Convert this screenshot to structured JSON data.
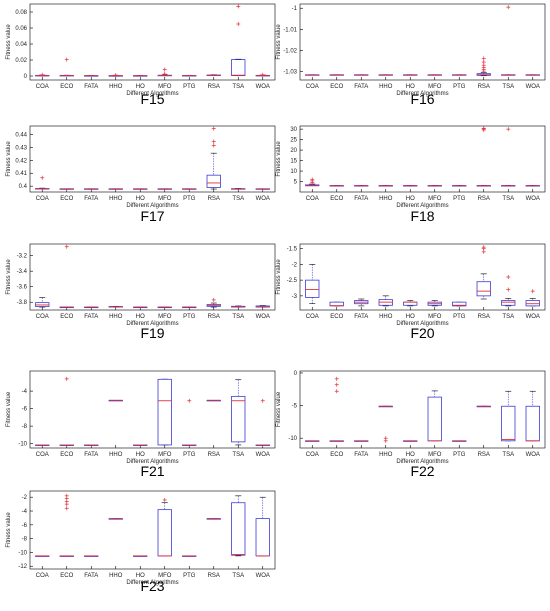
{
  "figure": {
    "xlabel": "Different Algorithms",
    "ylabel": "Fitness value",
    "box_color": "#3b3bd6",
    "median_color": "#e0303a",
    "outlier_color": "#e0303a",
    "whisker_color": "#3b3bd6"
  },
  "chart_data": [
    {
      "type": "box",
      "caption": "F15",
      "categories": [
        "COA",
        "ECO",
        "FATA",
        "HHO",
        "HO",
        "MFO",
        "PTG",
        "RSA",
        "TSA",
        "WOA"
      ],
      "ylim": [
        -0.005,
        0.09
      ],
      "yticks": [
        "0",
        "0.02",
        "0.04",
        "0.06",
        "0.08"
      ],
      "boxes": [
        {
          "q1": 0.0003,
          "med": 0.0005,
          "q3": 0.0008,
          "lo": 0.0003,
          "hi": 0.0012,
          "out": [
            0.0015
          ]
        },
        {
          "q1": 0.0003,
          "med": 0.0005,
          "q3": 0.0008,
          "lo": 0.0003,
          "hi": 0.001,
          "out": [
            0.0205
          ]
        },
        {
          "q1": 0.0003,
          "med": 0.0004,
          "q3": 0.0005,
          "lo": 0.0003,
          "hi": 0.0006,
          "out": []
        },
        {
          "q1": 0.0003,
          "med": 0.0004,
          "q3": 0.0005,
          "lo": 0.0003,
          "hi": 0.0006,
          "out": [
            0.0012
          ]
        },
        {
          "q1": 0.0003,
          "med": 0.0004,
          "q3": 0.0005,
          "lo": 0.0003,
          "hi": 0.0006,
          "out": []
        },
        {
          "q1": 0.0003,
          "med": 0.0006,
          "q3": 0.001,
          "lo": 0.0003,
          "hi": 0.0015,
          "out": [
            0.0025,
            0.008
          ]
        },
        {
          "q1": 0.0003,
          "med": 0.0005,
          "q3": 0.0007,
          "lo": 0.0003,
          "hi": 0.0009,
          "out": []
        },
        {
          "q1": 0.0005,
          "med": 0.0008,
          "q3": 0.0012,
          "lo": 0.0004,
          "hi": 0.0016,
          "out": []
        },
        {
          "q1": 0.0005,
          "med": 0.001,
          "q3": 0.0205,
          "lo": 0.0003,
          "hi": 0.021,
          "out": [
            0.065,
            0.087
          ]
        },
        {
          "q1": 0.0003,
          "med": 0.0005,
          "q3": 0.0008,
          "lo": 0.0003,
          "hi": 0.0012,
          "out": [
            0.0015
          ]
        }
      ]
    },
    {
      "type": "box",
      "caption": "F16",
      "categories": [
        "COA",
        "ECO",
        "FATA",
        "HHO",
        "HO",
        "MFO",
        "PTG",
        "RSA",
        "TSA",
        "WOA"
      ],
      "ylim": [
        -1.034,
        -0.998
      ],
      "yticks": [
        "-1",
        "-1.01",
        "-1.02",
        "-1.03"
      ],
      "boxes": [
        {
          "q1": -1.0317,
          "med": -1.0316,
          "q3": -1.0315,
          "lo": -1.0317,
          "hi": -1.0315,
          "out": []
        },
        {
          "q1": -1.0317,
          "med": -1.0316,
          "q3": -1.0315,
          "lo": -1.0317,
          "hi": -1.0315,
          "out": []
        },
        {
          "q1": -1.0317,
          "med": -1.0316,
          "q3": -1.0315,
          "lo": -1.0317,
          "hi": -1.0315,
          "out": []
        },
        {
          "q1": -1.0317,
          "med": -1.0316,
          "q3": -1.0315,
          "lo": -1.0317,
          "hi": -1.0315,
          "out": []
        },
        {
          "q1": -1.0317,
          "med": -1.0316,
          "q3": -1.0315,
          "lo": -1.0317,
          "hi": -1.0315,
          "out": []
        },
        {
          "q1": -1.0317,
          "med": -1.0316,
          "q3": -1.0315,
          "lo": -1.0317,
          "hi": -1.0315,
          "out": []
        },
        {
          "q1": -1.0317,
          "med": -1.0316,
          "q3": -1.0315,
          "lo": -1.0317,
          "hi": -1.0315,
          "out": []
        },
        {
          "q1": -1.0318,
          "med": -1.0315,
          "q3": -1.031,
          "lo": -1.032,
          "hi": -1.0305,
          "out": [
            -1.0298,
            -1.029,
            -1.028,
            -1.027,
            -1.0255,
            -1.0238
          ]
        },
        {
          "q1": -1.0317,
          "med": -1.0316,
          "q3": -1.0315,
          "lo": -1.0317,
          "hi": -1.0315,
          "out": [
            -0.9995
          ]
        },
        {
          "q1": -1.0317,
          "med": -1.0316,
          "q3": -1.0315,
          "lo": -1.0317,
          "hi": -1.0315,
          "out": []
        }
      ]
    },
    {
      "type": "box",
      "caption": "F17",
      "categories": [
        "COA",
        "ECO",
        "FATA",
        "HHO",
        "HO",
        "MFO",
        "PTG",
        "RSA",
        "TSA",
        "WOA"
      ],
      "ylim": [
        0.3955,
        0.4465
      ],
      "yticks": [
        "0.4",
        "0.41",
        "0.42",
        "0.43",
        "0.44"
      ],
      "boxes": [
        {
          "q1": 0.3978,
          "med": 0.3979,
          "q3": 0.3982,
          "lo": 0.3978,
          "hi": 0.3985,
          "out": [
            0.4065
          ]
        },
        {
          "q1": 0.3978,
          "med": 0.3979,
          "q3": 0.398,
          "lo": 0.3978,
          "hi": 0.398,
          "out": []
        },
        {
          "q1": 0.3978,
          "med": 0.3979,
          "q3": 0.398,
          "lo": 0.3978,
          "hi": 0.398,
          "out": []
        },
        {
          "q1": 0.3978,
          "med": 0.3979,
          "q3": 0.398,
          "lo": 0.3978,
          "hi": 0.398,
          "out": []
        },
        {
          "q1": 0.3978,
          "med": 0.3979,
          "q3": 0.398,
          "lo": 0.3978,
          "hi": 0.398,
          "out": []
        },
        {
          "q1": 0.3978,
          "med": 0.3979,
          "q3": 0.398,
          "lo": 0.3978,
          "hi": 0.398,
          "out": []
        },
        {
          "q1": 0.3978,
          "med": 0.3979,
          "q3": 0.398,
          "lo": 0.3978,
          "hi": 0.398,
          "out": []
        },
        {
          "q1": 0.399,
          "med": 0.4025,
          "q3": 0.4085,
          "lo": 0.3978,
          "hi": 0.4255,
          "out": [
            0.4315,
            0.4345,
            0.4445
          ]
        },
        {
          "q1": 0.3978,
          "med": 0.3979,
          "q3": 0.3981,
          "lo": 0.3978,
          "hi": 0.3983,
          "out": []
        },
        {
          "q1": 0.3978,
          "med": 0.3979,
          "q3": 0.398,
          "lo": 0.3978,
          "hi": 0.398,
          "out": []
        }
      ]
    },
    {
      "type": "box",
      "caption": "F18",
      "categories": [
        "COA",
        "ECO",
        "FATA",
        "HHO",
        "HO",
        "MFO",
        "PTG",
        "RSA",
        "TSA",
        "WOA"
      ],
      "ylim": [
        0,
        31.5
      ],
      "yticks": [
        "5",
        "10",
        "15",
        "20",
        "25",
        "30"
      ],
      "boxes": [
        {
          "q1": 3,
          "med": 3,
          "q3": 3.4,
          "lo": 3,
          "hi": 3.8,
          "out": [
            4.5,
            5.3,
            6
          ]
        },
        {
          "q1": 3,
          "med": 3,
          "q3": 3.1,
          "lo": 3,
          "hi": 3.2,
          "out": []
        },
        {
          "q1": 3,
          "med": 3,
          "q3": 3.1,
          "lo": 3,
          "hi": 3.2,
          "out": []
        },
        {
          "q1": 3,
          "med": 3,
          "q3": 3.1,
          "lo": 3,
          "hi": 3.2,
          "out": []
        },
        {
          "q1": 3,
          "med": 3,
          "q3": 3.1,
          "lo": 3,
          "hi": 3.2,
          "out": []
        },
        {
          "q1": 3,
          "med": 3,
          "q3": 3.1,
          "lo": 3,
          "hi": 3.2,
          "out": []
        },
        {
          "q1": 3,
          "med": 3,
          "q3": 3.1,
          "lo": 3,
          "hi": 3.2,
          "out": []
        },
        {
          "q1": 3,
          "med": 3,
          "q3": 3.1,
          "lo": 3,
          "hi": 3.2,
          "out": [
            29.6,
            30.1,
            30.4
          ]
        },
        {
          "q1": 3,
          "med": 3,
          "q3": 3.1,
          "lo": 3,
          "hi": 3.2,
          "out": [
            30
          ]
        },
        {
          "q1": 3,
          "med": 3,
          "q3": 3.1,
          "lo": 3,
          "hi": 3.2,
          "out": []
        }
      ]
    },
    {
      "type": "box",
      "caption": "F19",
      "categories": [
        "COA",
        "ECO",
        "FATA",
        "HHO",
        "HO",
        "MFO",
        "PTG",
        "RSA",
        "TSA",
        "WOA"
      ],
      "ylim": [
        -3.9,
        -3.05
      ],
      "yticks": [
        "-3.2",
        "-3.4",
        "-3.6",
        "-3.8"
      ],
      "boxes": [
        {
          "q1": -3.855,
          "med": -3.835,
          "q3": -3.805,
          "lo": -3.862,
          "hi": -3.74,
          "out": []
        },
        {
          "q1": -3.863,
          "med": -3.8625,
          "q3": -3.862,
          "lo": -3.863,
          "hi": -3.862,
          "out": [
            -3.085
          ]
        },
        {
          "q1": -3.863,
          "med": -3.8625,
          "q3": -3.862,
          "lo": -3.863,
          "hi": -3.862,
          "out": []
        },
        {
          "q1": -3.862,
          "med": -3.86,
          "q3": -3.855,
          "lo": -3.863,
          "hi": -3.852,
          "out": []
        },
        {
          "q1": -3.863,
          "med": -3.8625,
          "q3": -3.862,
          "lo": -3.863,
          "hi": -3.862,
          "out": []
        },
        {
          "q1": -3.863,
          "med": -3.8625,
          "q3": -3.862,
          "lo": -3.863,
          "hi": -3.862,
          "out": []
        },
        {
          "q1": -3.863,
          "med": -3.8625,
          "q3": -3.862,
          "lo": -3.863,
          "hi": -3.862,
          "out": []
        },
        {
          "q1": -3.853,
          "med": -3.84,
          "q3": -3.83,
          "lo": -3.862,
          "hi": -3.81,
          "out": [
            -3.77
          ]
        },
        {
          "q1": -3.862,
          "med": -3.858,
          "q3": -3.852,
          "lo": -3.863,
          "hi": -3.848,
          "out": []
        },
        {
          "q1": -3.862,
          "med": -3.855,
          "q3": -3.848,
          "lo": -3.863,
          "hi": -3.842,
          "out": []
        }
      ]
    },
    {
      "type": "box",
      "caption": "F20",
      "categories": [
        "COA",
        "ECO",
        "FATA",
        "HHO",
        "HO",
        "MFO",
        "PTG",
        "RSA",
        "TSA",
        "WOA"
      ],
      "ylim": [
        -3.45,
        -1.35
      ],
      "yticks": [
        "-1.5",
        "-2",
        "-2.5",
        "-3"
      ],
      "boxes": [
        {
          "q1": -3.05,
          "med": -2.8,
          "q3": -2.5,
          "lo": -3.25,
          "hi": -2.0,
          "out": []
        },
        {
          "q1": -3.32,
          "med": -3.31,
          "q3": -3.2,
          "lo": -3.32,
          "hi": -3.2,
          "out": []
        },
        {
          "q1": -3.25,
          "med": -3.2,
          "q3": -3.15,
          "lo": -3.32,
          "hi": -3.1,
          "out": []
        },
        {
          "q1": -3.3,
          "med": -3.2,
          "q3": -3.12,
          "lo": -3.32,
          "hi": -3.0,
          "out": []
        },
        {
          "q1": -3.3,
          "med": -3.2,
          "q3": -3.2,
          "lo": -3.32,
          "hi": -3.15,
          "out": []
        },
        {
          "q1": -3.3,
          "med": -3.25,
          "q3": -3.2,
          "lo": -3.32,
          "hi": -3.15,
          "out": []
        },
        {
          "q1": -3.32,
          "med": -3.3,
          "q3": -3.2,
          "lo": -3.32,
          "hi": -3.2,
          "out": []
        },
        {
          "q1": -3.0,
          "med": -2.85,
          "q3": -2.55,
          "lo": -3.1,
          "hi": -2.3,
          "out": [
            -1.6,
            -1.5,
            -1.45
          ]
        },
        {
          "q1": -3.3,
          "med": -3.2,
          "q3": -3.15,
          "lo": -3.32,
          "hi": -3.08,
          "out": [
            -2.4,
            -2.8
          ]
        },
        {
          "q1": -3.32,
          "med": -3.25,
          "q3": -3.15,
          "lo": -3.32,
          "hi": -3.08,
          "out": [
            -2.85
          ]
        }
      ]
    },
    {
      "type": "box",
      "caption": "F21",
      "categories": [
        "COA",
        "ECO",
        "FATA",
        "HHO",
        "HO",
        "MFO",
        "PTG",
        "RSA",
        "TSA",
        "WOA"
      ],
      "ylim": [
        -10.5,
        -1.7
      ],
      "yticks": [
        "-4",
        "-6",
        "-8",
        "-10"
      ],
      "boxes": [
        {
          "q1": -10.15,
          "med": -10.15,
          "q3": -10.15,
          "lo": -10.15,
          "hi": -10.15,
          "out": []
        },
        {
          "q1": -10.15,
          "med": -10.15,
          "q3": -10.15,
          "lo": -10.15,
          "hi": -10.15,
          "out": [
            -2.6
          ]
        },
        {
          "q1": -10.15,
          "med": -10.15,
          "q3": -10.15,
          "lo": -10.15,
          "hi": -10.15,
          "out": []
        },
        {
          "q1": -5.05,
          "med": -5.05,
          "q3": -5.05,
          "lo": -5.05,
          "hi": -5.05,
          "out": []
        },
        {
          "q1": -10.15,
          "med": -10.15,
          "q3": -10.15,
          "lo": -10.15,
          "hi": -10.15,
          "out": []
        },
        {
          "q1": -10.15,
          "med": -5.1,
          "q3": -2.65,
          "lo": -10.15,
          "hi": -2.63,
          "out": []
        },
        {
          "q1": -10.15,
          "med": -10.15,
          "q3": -10.15,
          "lo": -10.15,
          "hi": -10.15,
          "out": [
            -5.1
          ]
        },
        {
          "q1": -5.05,
          "med": -5.05,
          "q3": -5.05,
          "lo": -5.05,
          "hi": -5.05,
          "out": []
        },
        {
          "q1": -9.8,
          "med": -5.1,
          "q3": -4.6,
          "lo": -10.15,
          "hi": -2.7,
          "out": []
        },
        {
          "q1": -10.15,
          "med": -10.15,
          "q3": -10.15,
          "lo": -10.15,
          "hi": -10.15,
          "out": [
            -5.1
          ]
        }
      ]
    },
    {
      "type": "box",
      "caption": "F22",
      "categories": [
        "COA",
        "ECO",
        "FATA",
        "HHO",
        "HO",
        "MFO",
        "PTG",
        "RSA",
        "TSA",
        "WOA"
      ],
      "ylim": [
        -11.5,
        0.3
      ],
      "yticks": [
        "0",
        "-5",
        "-10"
      ],
      "boxes": [
        {
          "q1": -10.4,
          "med": -10.4,
          "q3": -10.4,
          "lo": -10.4,
          "hi": -10.4,
          "out": []
        },
        {
          "q1": -10.4,
          "med": -10.4,
          "q3": -10.4,
          "lo": -10.4,
          "hi": -10.4,
          "out": [
            -0.9,
            -1.8,
            -2.8
          ]
        },
        {
          "q1": -10.4,
          "med": -10.4,
          "q3": -10.4,
          "lo": -10.4,
          "hi": -10.4,
          "out": []
        },
        {
          "q1": -5.1,
          "med": -5.1,
          "q3": -5.1,
          "lo": -5.1,
          "hi": -5.1,
          "out": [
            -10.0,
            -10.4
          ]
        },
        {
          "q1": -10.4,
          "med": -10.4,
          "q3": -10.4,
          "lo": -10.4,
          "hi": -10.4,
          "out": []
        },
        {
          "q1": -10.4,
          "med": -10.4,
          "q3": -3.7,
          "lo": -10.4,
          "hi": -2.75,
          "out": []
        },
        {
          "q1": -10.4,
          "med": -10.4,
          "q3": -10.4,
          "lo": -10.4,
          "hi": -10.4,
          "out": []
        },
        {
          "q1": -5.1,
          "med": -5.1,
          "q3": -5.1,
          "lo": -5.1,
          "hi": -5.1,
          "out": []
        },
        {
          "q1": -10.4,
          "med": -10.2,
          "q3": -5.1,
          "lo": -10.4,
          "hi": -2.8,
          "out": []
        },
        {
          "q1": -10.4,
          "med": -10.4,
          "q3": -5.1,
          "lo": -10.4,
          "hi": -2.8,
          "out": []
        }
      ]
    },
    {
      "type": "box",
      "caption": "F23",
      "categories": [
        "COA",
        "ECO",
        "FATA",
        "HHO",
        "HO",
        "MFO",
        "PTG",
        "RSA",
        "TSA",
        "WOA"
      ],
      "ylim": [
        -12.4,
        -1.1
      ],
      "yticks": [
        "-2",
        "-4",
        "-6",
        "-8",
        "-10",
        "-12"
      ],
      "boxes": [
        {
          "q1": -10.5,
          "med": -10.5,
          "q3": -10.5,
          "lo": -10.5,
          "hi": -10.5,
          "out": []
        },
        {
          "q1": -10.5,
          "med": -10.5,
          "q3": -10.5,
          "lo": -10.5,
          "hi": -10.5,
          "out": [
            -1.8,
            -2.2,
            -2.6,
            -3.0,
            -3.6
          ]
        },
        {
          "q1": -10.5,
          "med": -10.5,
          "q3": -10.5,
          "lo": -10.5,
          "hi": -10.5,
          "out": []
        },
        {
          "q1": -5.1,
          "med": -5.1,
          "q3": -5.1,
          "lo": -5.1,
          "hi": -5.1,
          "out": []
        },
        {
          "q1": -10.5,
          "med": -10.5,
          "q3": -10.5,
          "lo": -10.5,
          "hi": -10.5,
          "out": []
        },
        {
          "q1": -10.5,
          "med": -10.5,
          "q3": -3.8,
          "lo": -10.5,
          "hi": -2.8,
          "out": [
            -2.4
          ]
        },
        {
          "q1": -10.5,
          "med": -10.5,
          "q3": -10.5,
          "lo": -10.5,
          "hi": -10.5,
          "out": []
        },
        {
          "q1": -5.1,
          "med": -5.1,
          "q3": -5.1,
          "lo": -5.1,
          "hi": -5.1,
          "out": []
        },
        {
          "q1": -10.4,
          "med": -10.3,
          "q3": -2.8,
          "lo": -10.5,
          "hi": -1.8,
          "out": []
        },
        {
          "q1": -10.5,
          "med": -10.5,
          "q3": -5.1,
          "lo": -10.5,
          "hi": -2.0,
          "out": []
        }
      ]
    }
  ]
}
